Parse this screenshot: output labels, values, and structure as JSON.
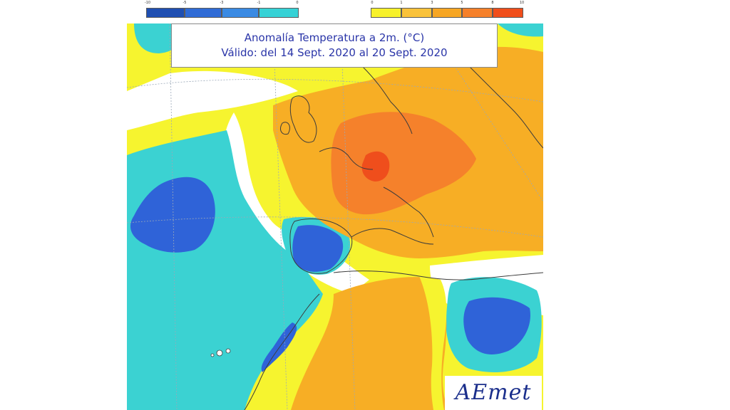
{
  "title": {
    "line1": "Anomalía Temperatura a 2m. (°C)",
    "line2": "Válido: del 14 Sept. 2020 al 20 Sept. 2020"
  },
  "legend": {
    "cold": {
      "colors": [
        "#1f4fb2",
        "#2f6bd6",
        "#3a8ae3",
        "#36d2d6"
      ],
      "ticks": [
        "-10",
        "-5",
        "-3",
        "-1",
        "0"
      ]
    },
    "warm": {
      "colors": [
        "#f7f12a",
        "#f9c23a",
        "#f7a623",
        "#f5802a",
        "#f04e1b"
      ],
      "ticks": [
        "0",
        "1",
        "3",
        "5",
        "8",
        "10"
      ]
    }
  },
  "palette": {
    "sea_cold": "#3bd2d2",
    "deep_cold": "#2f63d8",
    "neutral": "#ffffff",
    "yellow": "#f6f42f",
    "orange": "#f7ae25",
    "dark_orange": "#f5812b",
    "red": "#ef4e1c",
    "coast": "#3c3c3c"
  },
  "logo": {
    "text": "AEmet"
  }
}
